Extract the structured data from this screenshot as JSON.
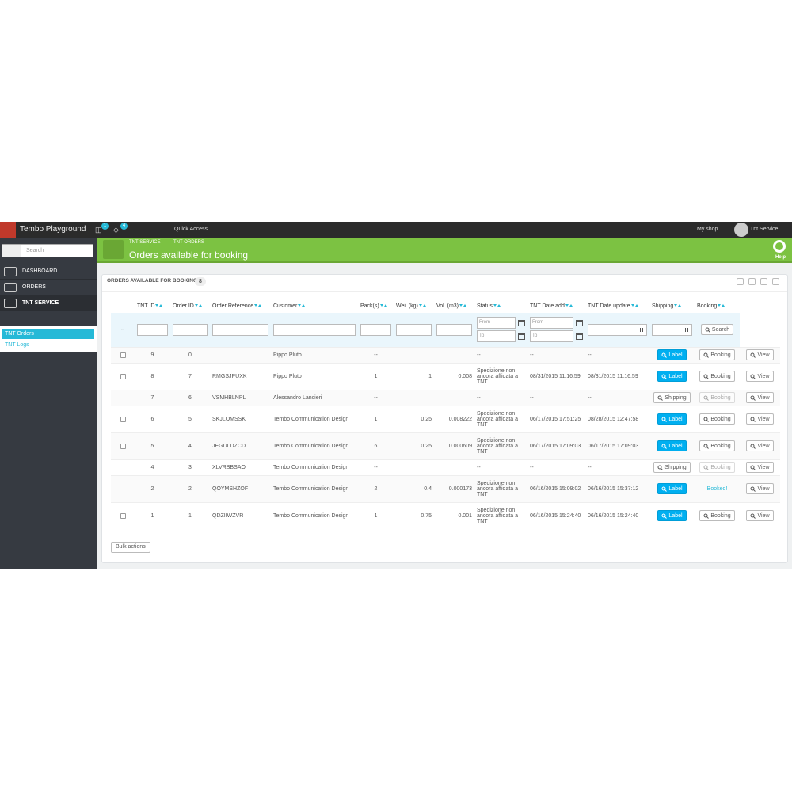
{
  "topbar": {
    "shop_name": "Tembo Playground",
    "cart_badge": "1",
    "trophy_badge": "4",
    "quick_access": "Quick Access",
    "my_shop": "My shop",
    "user": "Tnt Service"
  },
  "sidebar": {
    "search_placeholder": "Search",
    "menu": [
      "DASHBOARD",
      "ORDERS",
      "TNT SERVICE"
    ],
    "submenu": [
      "TNT Orders",
      "TNT Logs"
    ]
  },
  "header": {
    "breadcrumb": [
      "TNT SERVICE",
      "TNT ORDERS"
    ],
    "title": "Orders available for booking",
    "help": "Help"
  },
  "panel": {
    "title": "ORDERS AVAILABLE FOR BOOKING",
    "count": "8",
    "columns": [
      "TNT ID",
      "Order ID",
      "Order Reference",
      "Customer",
      "Pack(s)",
      "Wei. (kg)",
      "Vol. (m3)",
      "Status",
      "TNT Date add",
      "TNT Date update",
      "Shipping",
      "Booking"
    ],
    "filters": {
      "empty": "--",
      "from": "From",
      "to": "To",
      "select": "-",
      "search": "Search"
    },
    "rows": [
      {
        "select": true,
        "tnt_id": 9,
        "order_id": 0,
        "customer": "Pippo Pluto",
        "packs": "--",
        "status": "--",
        "date_add": "--",
        "date_update": "--",
        "shipping": "Label",
        "booking": "Booking",
        "booking_style": "button",
        "view": "View"
      },
      {
        "select": true,
        "tnt_id": 8,
        "order_id": 7,
        "reference": "RMGSJPUXK",
        "customer": "Pippo Pluto",
        "packs": 1,
        "weight": 1,
        "volume": 0.008,
        "status": "Spedizione non ancora affidata a TNT",
        "date_add": "08/31/2015 11:16:59",
        "date_update": "08/31/2015 11:16:59",
        "shipping": "Label",
        "booking": "Booking",
        "booking_style": "button",
        "view": "View"
      },
      {
        "select": false,
        "tnt_id": 7,
        "order_id": 6,
        "reference": "VSMHBLNPL",
        "customer": "Alessandro Lancieri",
        "packs": "--",
        "status": "--",
        "date_add": "--",
        "date_update": "--",
        "shipping": "Shipping",
        "booking": "Booking",
        "booking_style": "disabled",
        "view": "View"
      },
      {
        "select": true,
        "tnt_id": 6,
        "order_id": 5,
        "reference": "SKJLOMSSK",
        "customer": "Tembo Communication Design",
        "packs": 1,
        "weight": 0.25,
        "volume": 0.008222,
        "status": "Spedizione non ancora affidata a TNT",
        "date_add": "06/17/2015 17:51:25",
        "date_update": "08/28/2015 12:47:58",
        "shipping": "Label",
        "booking": "Booking",
        "booking_style": "button",
        "view": "View"
      },
      {
        "select": true,
        "tnt_id": 5,
        "order_id": 4,
        "reference": "JEGULDZCD",
        "customer": "Tembo Communication Design",
        "packs": 6,
        "weight": 0.25,
        "volume": 0.000609,
        "status": "Spedizione non ancora affidata a TNT",
        "date_add": "06/17/2015 17:09:03",
        "date_update": "06/17/2015 17:09:03",
        "shipping": "Label",
        "booking": "Booking",
        "booking_style": "button",
        "view": "View"
      },
      {
        "select": false,
        "tnt_id": 4,
        "order_id": 3,
        "reference": "XLVRBBSAO",
        "customer": "Tembo Communication Design",
        "packs": "--",
        "status": "--",
        "date_add": "--",
        "date_update": "--",
        "shipping": "Shipping",
        "booking": "Booking",
        "booking_style": "disabled",
        "view": "View"
      },
      {
        "select": false,
        "tnt_id": 2,
        "order_id": 2,
        "reference": "QOYMSHZOF",
        "customer": "Tembo Communication Design",
        "packs": 2,
        "weight": 0.4,
        "volume": 0.000173,
        "status": "Spedizione non ancora affidata a TNT",
        "date_add": "06/16/2015 15:09:02",
        "date_update": "06/16/2015 15:37:12",
        "shipping": "Label",
        "booking": "Booked!",
        "booking_style": "text",
        "view": "View"
      },
      {
        "select": true,
        "tnt_id": 1,
        "order_id": 1,
        "reference": "QDZIIWZVR",
        "customer": "Tembo Communication Design",
        "packs": 1,
        "weight": 0.75,
        "volume": 0.001,
        "status": "Spedizione non ancora affidata a TNT",
        "date_add": "06/16/2015 15:24:40",
        "date_update": "06/16/2015 15:24:40",
        "shipping": "Label",
        "booking": "Booking",
        "booking_style": "button",
        "view": "View"
      }
    ],
    "bulk_actions": "Bulk actions"
  }
}
